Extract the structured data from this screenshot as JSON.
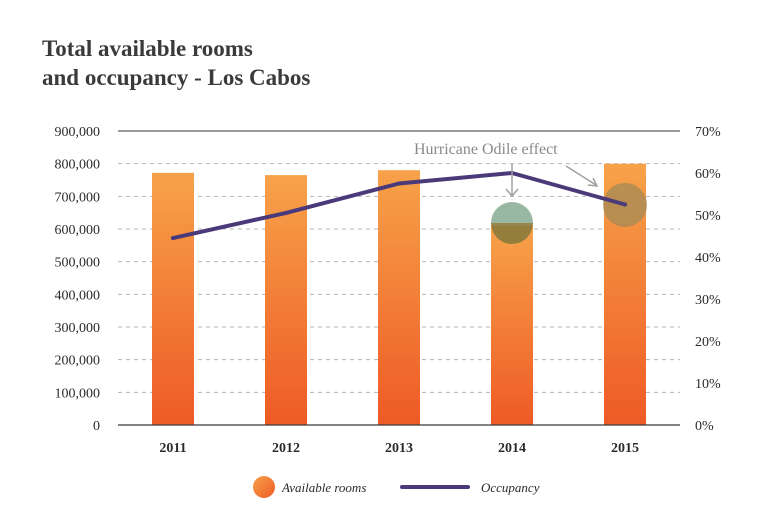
{
  "title_lines": [
    "Total available rooms",
    "and occupancy - Los Cabos"
  ],
  "chart_data": {
    "type": "bar",
    "categories": [
      "2011",
      "2012",
      "2013",
      "2014",
      "2015"
    ],
    "series": [
      {
        "name": "Available rooms",
        "type": "bar",
        "axis": "left",
        "values": [
          772000,
          765000,
          780000,
          610000,
          800000
        ]
      },
      {
        "name": "Occupancy",
        "type": "line",
        "axis": "right",
        "values": [
          44.5,
          50.5,
          57.5,
          60,
          52.5
        ]
      }
    ],
    "left_axis": {
      "ylim": [
        0,
        900000
      ],
      "tick_labels": [
        "0",
        "100,000",
        "200,000",
        "300,000",
        "400,000",
        "500,000",
        "600,000",
        "700,000",
        "800,000",
        "900,000"
      ]
    },
    "right_axis": {
      "ylim": [
        0,
        70
      ],
      "tick_labels": [
        "0%",
        "10%",
        "20%",
        "30%",
        "40%",
        "50%",
        "60%",
        "70%"
      ]
    },
    "annotation": "Hurricane Odile effect",
    "grid": "dashed horizontal",
    "legend_position": "bottom-center"
  },
  "colors": {
    "bar_top": "#f7a24a",
    "bar_bottom": "#ee5a25",
    "line": "#4a3a7a",
    "marker_2014_top": "#93b49e",
    "marker_2014_bottom": "#8a7a3a",
    "marker_2015": "#a48a56"
  }
}
